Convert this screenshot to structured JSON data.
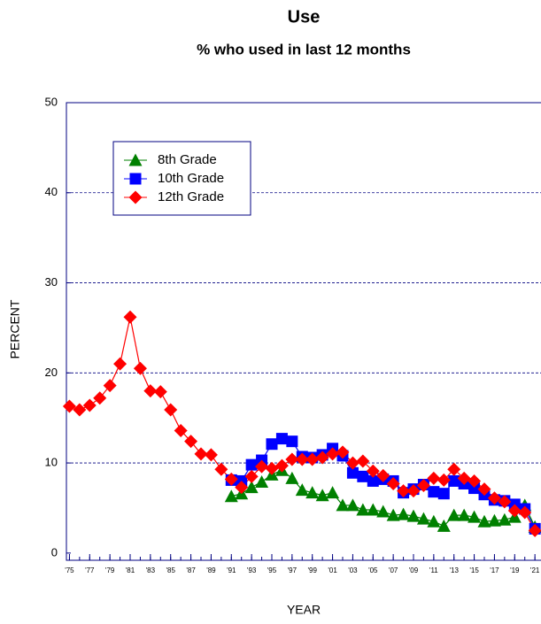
{
  "chart_data": {
    "type": "line",
    "title": "Use",
    "subtitle": "% who used in last 12 months",
    "y_label": "PERCENT",
    "x_label": "YEAR",
    "x": [
      1975,
      1976,
      1977,
      1978,
      1979,
      1980,
      1981,
      1982,
      1983,
      1984,
      1985,
      1986,
      1987,
      1988,
      1989,
      1990,
      1991,
      1992,
      1993,
      1994,
      1995,
      1996,
      1997,
      1998,
      1999,
      2000,
      2001,
      2002,
      2003,
      2004,
      2005,
      2006,
      2007,
      2008,
      2009,
      2010,
      2011,
      2012,
      2013,
      2014,
      2015,
      2016,
      2017,
      2018,
      2019,
      2020,
      2021
    ],
    "series": [
      {
        "name": "8th Grade",
        "color": "#008000",
        "marker": "triangle",
        "values": [
          null,
          null,
          null,
          null,
          null,
          null,
          null,
          null,
          null,
          null,
          null,
          null,
          null,
          null,
          null,
          null,
          6.3,
          6.6,
          7.3,
          7.9,
          8.7,
          9.2,
          8.3,
          7.0,
          6.7,
          6.4,
          6.7,
          5.3,
          5.3,
          4.8,
          4.8,
          4.6,
          4.2,
          4.3,
          4.1,
          3.8,
          3.5,
          3.0,
          4.2,
          4.2,
          4.0,
          3.5,
          3.6,
          3.7,
          4.0,
          5.3,
          2.9
        ]
      },
      {
        "name": "10th Grade",
        "color": "#0000ff",
        "marker": "square",
        "values": [
          null,
          null,
          null,
          null,
          null,
          null,
          null,
          null,
          null,
          null,
          null,
          null,
          null,
          null,
          null,
          null,
          8.1,
          8.0,
          9.8,
          10.3,
          12.1,
          12.7,
          12.4,
          10.7,
          10.6,
          10.9,
          11.6,
          10.8,
          8.9,
          8.5,
          8.0,
          8.2,
          8.0,
          6.7,
          7.1,
          7.6,
          6.8,
          6.6,
          8.0,
          7.7,
          7.2,
          6.5,
          5.9,
          5.8,
          5.4,
          4.9,
          2.7
        ]
      },
      {
        "name": "12th Grade",
        "color": "#ff0000",
        "marker": "diamond",
        "values": [
          16.3,
          15.9,
          16.4,
          17.2,
          18.6,
          21.0,
          26.2,
          20.5,
          18.0,
          17.9,
          15.9,
          13.6,
          12.4,
          11.0,
          10.9,
          9.3,
          8.2,
          7.3,
          8.5,
          9.6,
          9.4,
          9.7,
          10.4,
          10.4,
          10.4,
          10.6,
          11.0,
          11.2,
          10.0,
          10.2,
          9.1,
          8.6,
          7.7,
          6.9,
          6.9,
          7.5,
          8.3,
          8.1,
          9.3,
          8.3,
          8.0,
          7.1,
          6.1,
          5.7,
          4.7,
          4.5,
          2.5
        ]
      }
    ],
    "xlim": [
      1974.7,
      2021.6
    ],
    "xticks": [
      {
        "value": 1975,
        "label": "'75"
      },
      {
        "value": 1977,
        "label": "'77"
      },
      {
        "value": 1979,
        "label": "'79"
      },
      {
        "value": 1981,
        "label": "'81"
      },
      {
        "value": 1983,
        "label": "'83"
      },
      {
        "value": 1985,
        "label": "'85"
      },
      {
        "value": 1987,
        "label": "'87"
      },
      {
        "value": 1989,
        "label": "'89"
      },
      {
        "value": 1991,
        "label": "'91"
      },
      {
        "value": 1993,
        "label": "'93"
      },
      {
        "value": 1995,
        "label": "'95"
      },
      {
        "value": 1997,
        "label": "'97"
      },
      {
        "value": 1999,
        "label": "'99"
      },
      {
        "value": 2001,
        "label": "'01"
      },
      {
        "value": 2003,
        "label": "'03"
      },
      {
        "value": 2005,
        "label": "'05"
      },
      {
        "value": 2007,
        "label": "'07"
      },
      {
        "value": 2009,
        "label": "'09"
      },
      {
        "value": 2011,
        "label": "'11"
      },
      {
        "value": 2013,
        "label": "'13"
      },
      {
        "value": 2015,
        "label": "'15"
      },
      {
        "value": 2017,
        "label": "'17"
      },
      {
        "value": 2019,
        "label": "'19"
      },
      {
        "value": 2021,
        "label": "'21"
      }
    ],
    "ylim": [
      -0.8,
      50
    ],
    "yticks": [
      0,
      10,
      20,
      30,
      40,
      50
    ],
    "grid": true,
    "legend": "upper left"
  }
}
